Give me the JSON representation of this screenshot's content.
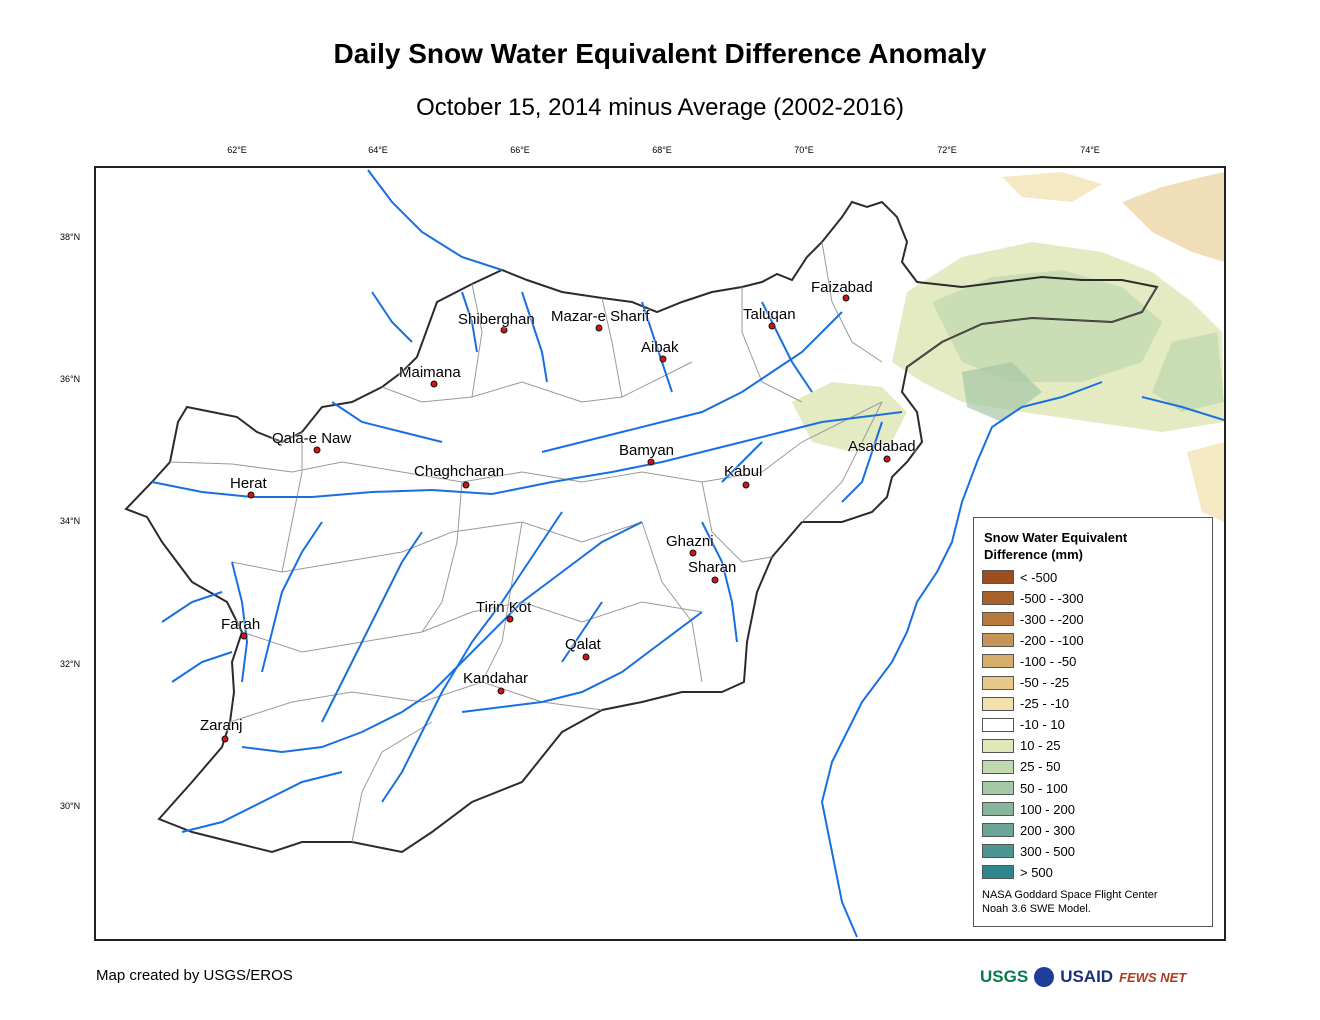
{
  "title": "Daily Snow Water Equivalent Difference Anomaly",
  "subtitle": "October 15, 2014 minus Average (2002-2016)",
  "longitude_labels": [
    "62°E",
    "64°E",
    "66°E",
    "68°E",
    "70°E",
    "72°E",
    "74°E"
  ],
  "latitude_labels": [
    "38°N",
    "36°N",
    "34°N",
    "32°N",
    "30°N"
  ],
  "cities": [
    {
      "name": "Faizabad"
    },
    {
      "name": "Taluqan"
    },
    {
      "name": "Mazar-e Sharif"
    },
    {
      "name": "Shiberghan"
    },
    {
      "name": "Aibak"
    },
    {
      "name": "Maimana"
    },
    {
      "name": "Qala-e Naw"
    },
    {
      "name": "Herat"
    },
    {
      "name": "Chaghcharan"
    },
    {
      "name": "Bamyan"
    },
    {
      "name": "Kabul"
    },
    {
      "name": "Asadabad"
    },
    {
      "name": "Ghazni"
    },
    {
      "name": "Sharan"
    },
    {
      "name": "Tirin Kot"
    },
    {
      "name": "Farah"
    },
    {
      "name": "Qalat"
    },
    {
      "name": "Kandahar"
    },
    {
      "name": "Zaranj"
    }
  ],
  "legend": {
    "title_line1": "Snow Water Equivalent",
    "title_line2": "Difference (mm)",
    "items": [
      {
        "label": "< -500",
        "color": "#9c4f1c"
      },
      {
        "label": "-500 - -300",
        "color": "#a9612c"
      },
      {
        "label": "-300 - -200",
        "color": "#b8793d"
      },
      {
        "label": "-200 - -100",
        "color": "#c79557"
      },
      {
        "label": "-100 - -50",
        "color": "#d7ad6c"
      },
      {
        "label": "-50 - -25",
        "color": "#e6c888"
      },
      {
        "label": "-25 - -10",
        "color": "#f1e0ab"
      },
      {
        "label": "-10 - 10",
        "color": "#ffffff"
      },
      {
        "label": "10 - 25",
        "color": "#dfe8b8"
      },
      {
        "label": "25 - 50",
        "color": "#c2d9b0"
      },
      {
        "label": "50 - 100",
        "color": "#a5c8a6"
      },
      {
        "label": "100 - 200",
        "color": "#87b59d"
      },
      {
        "label": "200 - 300",
        "color": "#6aa598"
      },
      {
        "label": "300 - 500",
        "color": "#4c9593"
      },
      {
        "label": "> 500",
        "color": "#2f8590"
      }
    ],
    "credit_line1": "NASA Goddard Space Flight Center",
    "credit_line2": "Noah 3.6 SWE Model."
  },
  "footer": {
    "credit": "Map created by USGS/EROS",
    "logos": [
      "USGS",
      "NASA",
      "USAID",
      "FEWS NET"
    ]
  },
  "colors": {
    "river": "#1a6fe0",
    "border": "#2b2b2b",
    "province_line": "#9a9a9a",
    "city_marker": "#d21414"
  }
}
